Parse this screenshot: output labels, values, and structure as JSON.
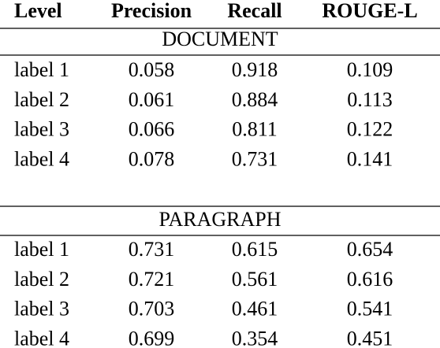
{
  "table": {
    "header": [
      "Level",
      "Precision",
      "Recall",
      "ROUGE-L"
    ],
    "sections": [
      {
        "title": "DOCUMENT",
        "rows": [
          [
            "label 1",
            "0.058",
            "0.918",
            "0.109"
          ],
          [
            "label 2",
            "0.061",
            "0.884",
            "0.113"
          ],
          [
            "label 3",
            "0.066",
            "0.811",
            "0.122"
          ],
          [
            "label 4",
            "0.078",
            "0.731",
            "0.141"
          ]
        ]
      },
      {
        "title": "PARAGRAPH",
        "rows": [
          [
            "label 1",
            "0.731",
            "0.615",
            "0.654"
          ],
          [
            "label 2",
            "0.721",
            "0.561",
            "0.616"
          ],
          [
            "label 3",
            "0.703",
            "0.461",
            "0.541"
          ],
          [
            "label 4",
            "0.699",
            "0.354",
            "0.451"
          ]
        ]
      }
    ]
  }
}
